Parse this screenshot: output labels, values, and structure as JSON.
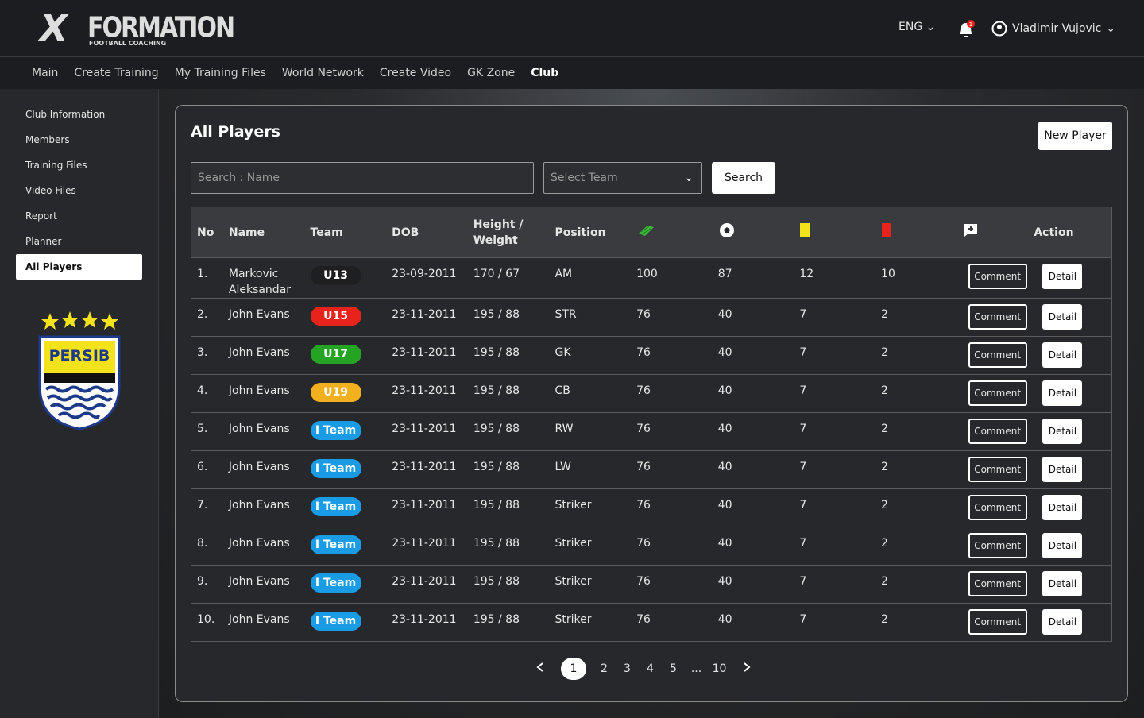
{
  "header": {
    "logo": {
      "mark": "X",
      "name": "FORMATION",
      "tagline": "FOOTBALL COACHING"
    },
    "language": "ENG",
    "notification_badge": "1",
    "user": "Vladimir Vujovic"
  },
  "nav": {
    "items": [
      "Main",
      "Create Training",
      "My Training Files",
      "World Network",
      "Create Video",
      "GK Zone",
      "Club"
    ],
    "active": 6
  },
  "sidebar": {
    "items": [
      "Club Information",
      "Members",
      "Training Files",
      "Video Files",
      "Report",
      "Planner",
      "All Players"
    ],
    "active": 6,
    "club": "PERSIB"
  },
  "panel": {
    "title": "All Players",
    "new_player": "New Player",
    "search_placeholder": "Search : Name",
    "team_placeholder": "Select Team",
    "search_button": "Search"
  },
  "table": {
    "columns": [
      "No",
      "Name",
      "Team",
      "DOB",
      "Height / Weight",
      "Position",
      null,
      null,
      null,
      null,
      null,
      "Action"
    ],
    "comment_label": "Comment",
    "detail_label": "Detail",
    "rows": [
      {
        "no": "1.",
        "name": "Markovic Aleksandar",
        "team": "U13",
        "team_color": "#1f1f22",
        "dob": "23-09-2011",
        "height_weight": "170 / 67",
        "position": "AM",
        "stats": [
          100,
          87,
          12,
          10
        ]
      },
      {
        "no": "2.",
        "name": "John Evans",
        "team": "U15",
        "team_color": "#e8231b",
        "dob": "23-11-2011",
        "height_weight": "195 / 88",
        "position": "STR",
        "stats": [
          76,
          40,
          7,
          2
        ]
      },
      {
        "no": "3.",
        "name": "John Evans",
        "team": "U17",
        "team_color": "#25a322",
        "dob": "23-11-2011",
        "height_weight": "195 / 88",
        "position": "GK",
        "stats": [
          76,
          40,
          7,
          2
        ]
      },
      {
        "no": "4.",
        "name": "John Evans",
        "team": "U19",
        "team_color": "#f2b01e",
        "dob": "23-11-2011",
        "height_weight": "195 / 88",
        "position": "CB",
        "stats": [
          76,
          40,
          7,
          2
        ]
      },
      {
        "no": "5.",
        "name": "John Evans",
        "team": "I Team",
        "team_color": "#1a9be6",
        "dob": "23-11-2011",
        "height_weight": "195 / 88",
        "position": "RW",
        "stats": [
          76,
          40,
          7,
          2
        ]
      },
      {
        "no": "6.",
        "name": "John Evans",
        "team": "I Team",
        "team_color": "#1a9be6",
        "dob": "23-11-2011",
        "height_weight": "195 / 88",
        "position": "LW",
        "stats": [
          76,
          40,
          7,
          2
        ]
      },
      {
        "no": "7.",
        "name": "John Evans",
        "team": "I Team",
        "team_color": "#1a9be6",
        "dob": "23-11-2011",
        "height_weight": "195 / 88",
        "position": "Striker",
        "stats": [
          76,
          40,
          7,
          2
        ]
      },
      {
        "no": "8.",
        "name": "John Evans",
        "team": "I Team",
        "team_color": "#1a9be6",
        "dob": "23-11-2011",
        "height_weight": "195 / 88",
        "position": "Striker",
        "stats": [
          76,
          40,
          7,
          2
        ]
      },
      {
        "no": "9.",
        "name": "John Evans",
        "team": "I Team",
        "team_color": "#1a9be6",
        "dob": "23-11-2011",
        "height_weight": "195 / 88",
        "position": "Striker",
        "stats": [
          76,
          40,
          7,
          2
        ]
      },
      {
        "no": "10.",
        "name": "John Evans",
        "team": "I Team",
        "team_color": "#1a9be6",
        "dob": "23-11-2011",
        "height_weight": "195 / 88",
        "position": "Striker",
        "stats": [
          76,
          40,
          7,
          2
        ]
      }
    ]
  },
  "pagination": {
    "pages": [
      "1",
      "2",
      "3",
      "4",
      "5",
      "...",
      "10"
    ],
    "current": 0
  }
}
